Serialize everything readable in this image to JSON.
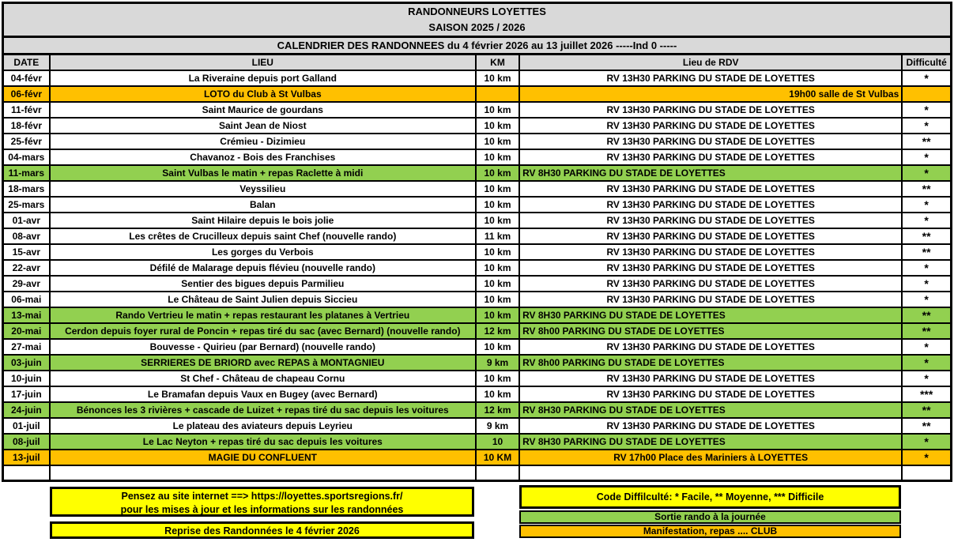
{
  "colors": {
    "orange": "#FFC000",
    "green": "#92D050",
    "yellow": "#FFFF00",
    "gray": "#D9D9D9"
  },
  "header": {
    "title": "RANDONNEURS LOYETTES",
    "season": "SAISON 2025 / 2026",
    "subtitle": "CALENDRIER DES RANDONNEES du 4 février 2026 au 13 juillet 2026   -----Ind 0 -----"
  },
  "table": {
    "columns": [
      "DATE",
      "LIEU",
      "KM",
      "Lieu de RDV",
      "Difficulté"
    ],
    "rows": [
      {
        "date": "04-févr",
        "lieu": "La Riveraine depuis port Galland",
        "km": "10 km",
        "rdv": "RV 13H30 PARKING DU STADE DE LOYETTES",
        "difficulte": "*",
        "type": "normal",
        "rdv_align": "center"
      },
      {
        "date": "06-févr",
        "lieu": "LOTO du Club à St Vulbas",
        "km": "",
        "rdv": "19h00 salle de St Vulbas",
        "difficulte": "",
        "type": "club",
        "rdv_align": "right"
      },
      {
        "date": "11-févr",
        "lieu": "Saint Maurice de gourdans",
        "km": "10 km",
        "rdv": "RV 13H30 PARKING DU STADE DE LOYETTES",
        "difficulte": "*",
        "type": "normal",
        "rdv_align": "center"
      },
      {
        "date": "18-févr",
        "lieu": "Saint Jean de Niost",
        "km": "10 km",
        "rdv": "RV 13H30 PARKING DU STADE DE LOYETTES",
        "difficulte": "*",
        "type": "normal",
        "rdv_align": "center"
      },
      {
        "date": "25-févr",
        "lieu": "Crémieu - Dizimieu",
        "km": "10 km",
        "rdv": "RV 13H30 PARKING DU STADE DE LOYETTES",
        "difficulte": "**",
        "type": "normal",
        "rdv_align": "center"
      },
      {
        "date": "04-mars",
        "lieu": "Chavanoz - Bois des Franchises",
        "km": "10 km",
        "rdv": "RV 13H30 PARKING DU STADE DE LOYETTES",
        "difficulte": "*",
        "type": "normal",
        "rdv_align": "center"
      },
      {
        "date": "11-mars",
        "lieu": "Saint Vulbas le matin + repas Raclette à midi",
        "km": "10 km",
        "rdv": "RV 8H30 PARKING DU STADE DE LOYETTES",
        "difficulte": "*",
        "type": "journee",
        "rdv_align": "left"
      },
      {
        "date": "18-mars",
        "lieu": "Veyssilieu",
        "km": "10 km",
        "rdv": "RV 13H30 PARKING DU STADE DE LOYETTES",
        "difficulte": "**",
        "type": "normal",
        "rdv_align": "center"
      },
      {
        "date": "25-mars",
        "lieu": "Balan",
        "km": "10 km",
        "rdv": "RV 13H30 PARKING DU STADE DE LOYETTES",
        "difficulte": "*",
        "type": "normal",
        "rdv_align": "center"
      },
      {
        "date": "01-avr",
        "lieu": "Saint Hilaire depuis le bois jolie",
        "km": "10 km",
        "rdv": "RV 13H30 PARKING DU STADE DE LOYETTES",
        "difficulte": "*",
        "type": "normal",
        "rdv_align": "center"
      },
      {
        "date": "08-avr",
        "lieu": "Les crêtes de Crucilleux depuis saint Chef (nouvelle rando)",
        "km": "11 km",
        "rdv": "RV 13H30 PARKING DU STADE DE LOYETTES",
        "difficulte": "**",
        "type": "normal",
        "rdv_align": "center"
      },
      {
        "date": "15-avr",
        "lieu": "Les gorges du Verbois",
        "km": "10 km",
        "rdv": "RV 13H30 PARKING DU STADE DE LOYETTES",
        "difficulte": "**",
        "type": "normal",
        "rdv_align": "center"
      },
      {
        "date": "22-avr",
        "lieu": "Défilé de Malarage depuis flévieu (nouvelle rando)",
        "km": "10 km",
        "rdv": "RV 13H30 PARKING DU STADE DE LOYETTES",
        "difficulte": "*",
        "type": "normal",
        "rdv_align": "center"
      },
      {
        "date": "29-avr",
        "lieu": "Sentier des bigues depuis Parmilieu",
        "km": "10 km",
        "rdv": "RV 13H30 PARKING DU STADE DE LOYETTES",
        "difficulte": "*",
        "type": "normal",
        "rdv_align": "center"
      },
      {
        "date": "06-mai",
        "lieu": "Le Château de Saint Julien depuis Siccieu",
        "km": "10 km",
        "rdv": "RV 13H30 PARKING DU STADE DE LOYETTES",
        "difficulte": "*",
        "type": "normal",
        "rdv_align": "center"
      },
      {
        "date": "13-mai",
        "lieu": "Rando Vertrieu le matin + repas restaurant les platanes à Vertrieu",
        "km": "10 km",
        "rdv": "RV 8H30 PARKING DU STADE DE LOYETTES",
        "difficulte": "**",
        "type": "journee",
        "rdv_align": "left"
      },
      {
        "date": "20-mai",
        "lieu": "Cerdon depuis foyer rural de Poncin + repas tiré du sac (avec Bernard) (nouvelle rando)",
        "km": "12 km",
        "rdv": "RV 8h00 PARKING DU STADE DE LOYETTES",
        "difficulte": "**",
        "type": "journee",
        "rdv_align": "left"
      },
      {
        "date": "27-mai",
        "lieu": "Bouvesse - Quirieu (par Bernard) (nouvelle rando)",
        "km": "10 km",
        "rdv": "RV 13H30 PARKING DU STADE DE LOYETTES",
        "difficulte": "*",
        "type": "normal",
        "rdv_align": "center"
      },
      {
        "date": "03-juin",
        "lieu": "SERRIERES DE BRIORD avec REPAS à MONTAGNIEU",
        "km": "9 km",
        "rdv": "RV 8h00 PARKING DU STADE DE LOYETTES",
        "difficulte": "*",
        "type": "journee",
        "rdv_align": "left"
      },
      {
        "date": "10-juin",
        "lieu": "St Chef  - Château de chapeau Cornu",
        "km": "10 km",
        "rdv": "RV 13H30 PARKING DU STADE DE LOYETTES",
        "difficulte": "*",
        "type": "normal",
        "rdv_align": "center"
      },
      {
        "date": "17-juin",
        "lieu": "Le Bramafan depuis Vaux en Bugey (avec Bernard)",
        "km": "10 km",
        "rdv": "RV 13H30 PARKING DU STADE DE LOYETTES",
        "difficulte": "***",
        "type": "normal",
        "rdv_align": "center"
      },
      {
        "date": "24-juin",
        "lieu": "Bénonces les 3 rivières + cascade de Luizet + repas tiré du sac depuis les voitures",
        "km": "12 km",
        "rdv": "RV 8H30 PARKING DU STADE DE LOYETTES",
        "difficulte": "**",
        "type": "journee",
        "rdv_align": "left"
      },
      {
        "date": "01-juil",
        "lieu": "Le plateau des aviateurs depuis Leyrieu",
        "km": "9 km",
        "rdv": "RV 13H30 PARKING DU STADE DE LOYETTES",
        "difficulte": "**",
        "type": "normal",
        "rdv_align": "center"
      },
      {
        "date": "08-juil",
        "lieu": "Le Lac Neyton + repas tiré du sac depuis les voitures",
        "km": "10",
        "rdv": "RV 8H30 PARKING DU STADE DE LOYETTES",
        "difficulte": "*",
        "type": "journee",
        "rdv_align": "left"
      },
      {
        "date": "13-juil",
        "lieu": "MAGIE DU CONFLUENT",
        "km": "10 KM",
        "rdv": "RV 17h00 Place des Mariniers à LOYETTES",
        "difficulte": "*",
        "type": "club",
        "rdv_align": "center"
      }
    ]
  },
  "footer": {
    "site_note_line1": "Pensez au site internet ==> https://loyettes.sportsregions.fr/",
    "site_note_line2": "pour les mises à jour et les informations sur les randonnées",
    "reprise": "Reprise des Randonnées le 4 février 2026",
    "code_difficulte": "Code Diffilculté: * Facile, ** Moyenne, *** Difficile",
    "legend_journee": "Sortie rando à la journée",
    "legend_club": "Manifestation, repas .... CLUB"
  }
}
